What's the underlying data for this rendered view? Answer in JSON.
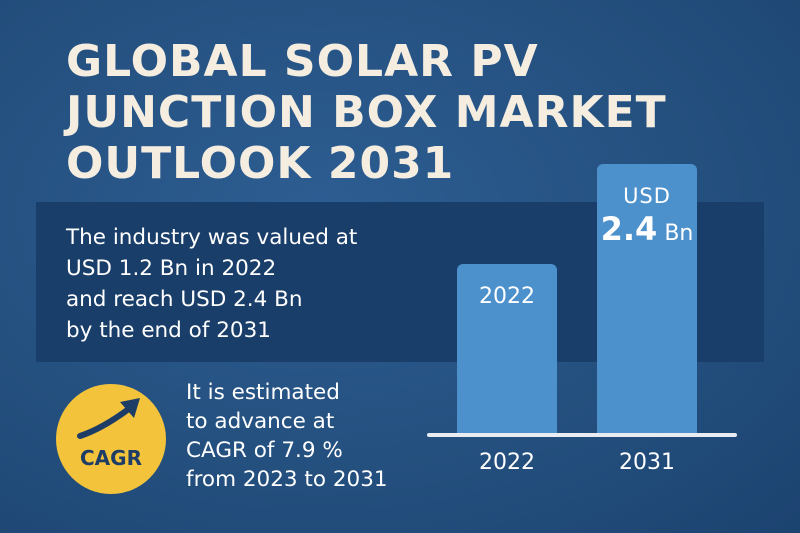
{
  "title": {
    "lines": [
      "GLOBAL SOLAR PV",
      "JUNCTION BOX MARKET",
      "OUTLOOK 2031"
    ]
  },
  "summary": {
    "lines": [
      "The industry was valued at",
      "USD 1.2 Bn in 2022",
      "and reach USD 2.4 Bn",
      "by the end of 2031"
    ]
  },
  "cagr": {
    "badge": "CAGR",
    "lines": [
      "It is estimated",
      "to advance at",
      "CAGR of 7.9 %",
      "from 2023 to 2031"
    ],
    "icon": "trend-up-arrow-icon",
    "badge_color": "#f3c33b"
  },
  "chart_data": {
    "type": "bar",
    "categories": [
      "2022",
      "2031"
    ],
    "values": [
      1.2,
      2.4
    ],
    "unit": "USD Bn",
    "bar_labels": {
      "2022": "2022",
      "2031_currency": "USD",
      "2031_value": "2.4",
      "2031_unit": "Bn"
    },
    "title": "",
    "xlabel": "",
    "ylabel": "",
    "bar_color": "#4c90cc"
  }
}
